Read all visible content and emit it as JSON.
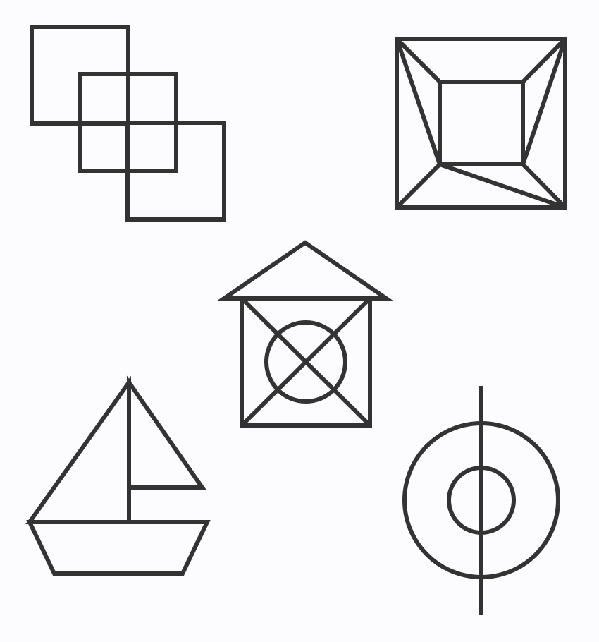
{
  "colors": {
    "background": "#fcfbfd",
    "stroke": "#333333"
  },
  "figures": [
    {
      "id": "overlapping-squares",
      "icon": "three-overlapping-squares-icon"
    },
    {
      "id": "nested-square-frame",
      "icon": "square-frame-with-inner-square-icon"
    },
    {
      "id": "house-with-circle-cross",
      "icon": "house-box-with-crossed-circle-icon"
    },
    {
      "id": "sailboat",
      "icon": "sailboat-icon"
    },
    {
      "id": "target-rings",
      "icon": "concentric-circles-with-line-icon"
    }
  ]
}
